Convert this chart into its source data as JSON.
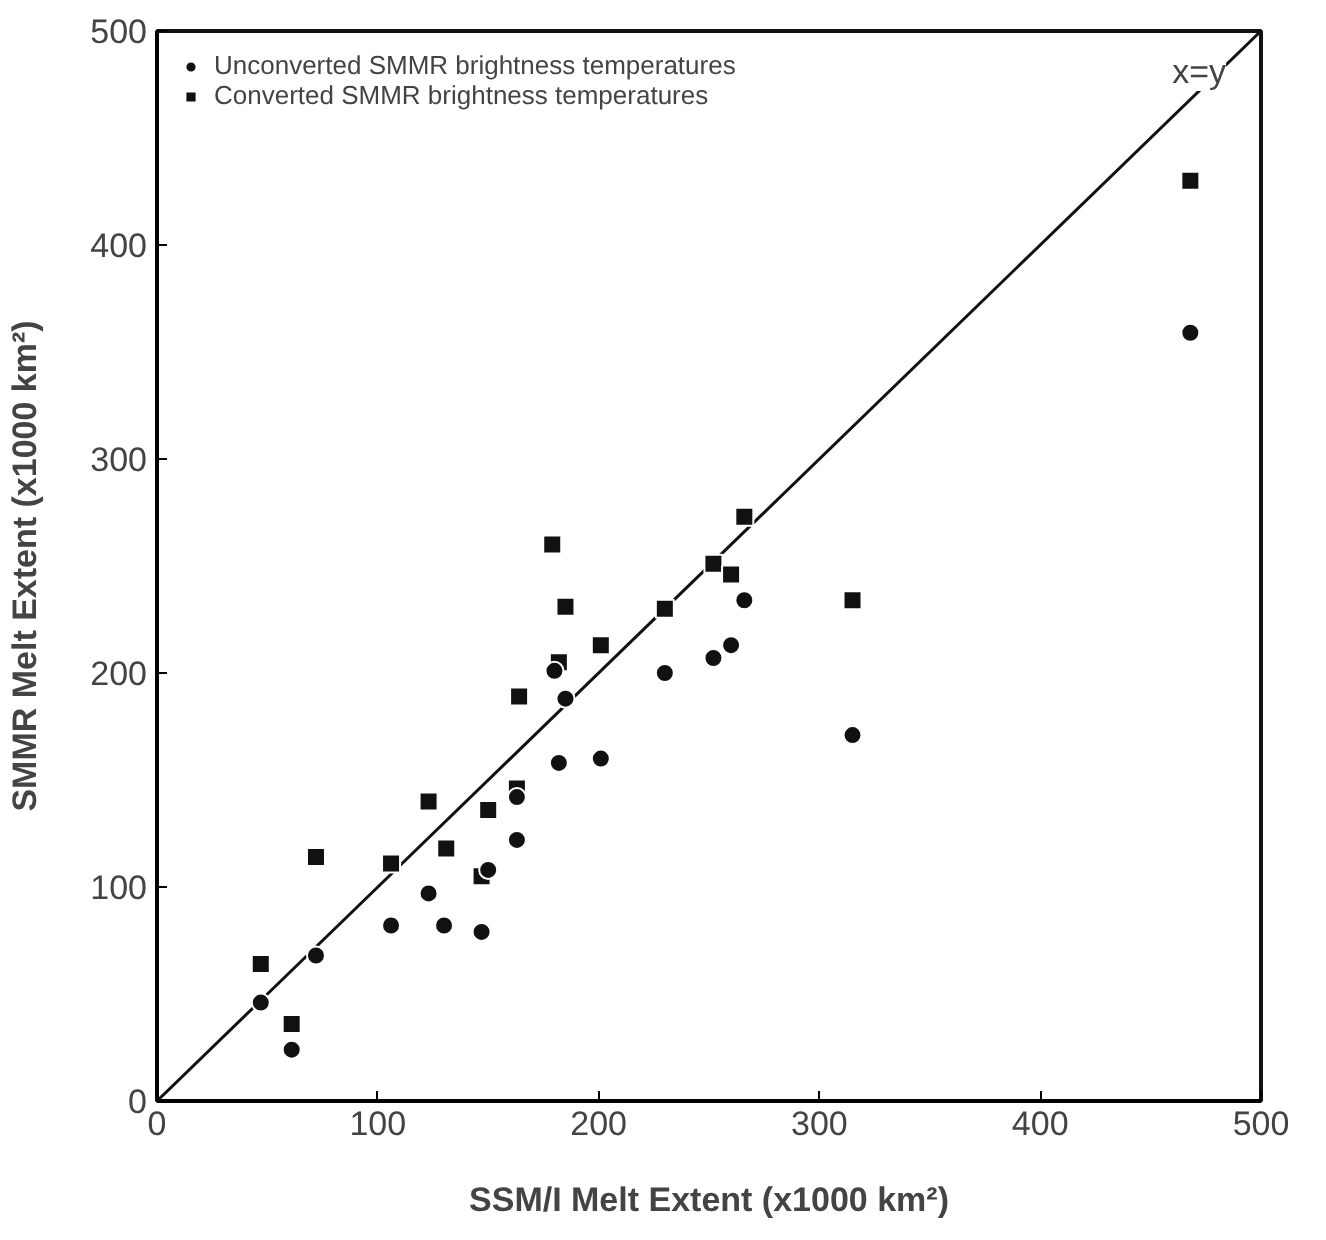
{
  "chart_data": {
    "type": "scatter",
    "xlabel": "SSM/I Melt Extent (x1000 km²)",
    "ylabel": "SMMR Melt Extent (x1000 km²)",
    "xlim": [
      0,
      500
    ],
    "ylim": [
      0,
      500
    ],
    "xticks": [
      0,
      100,
      200,
      300,
      400,
      500
    ],
    "yticks": [
      0,
      100,
      200,
      300,
      400,
      500
    ],
    "grid": false,
    "legend": "top left",
    "series": [
      {
        "name": "Unconverted SMMR brightness temperatures",
        "color": "#111111",
        "marker": "circle",
        "x": [
          47,
          61,
          72,
          106,
          123,
          130,
          147,
          150,
          163,
          163,
          180,
          185,
          182,
          201,
          230,
          252,
          260,
          266,
          315,
          468
        ],
        "values": [
          46,
          24,
          68,
          82,
          97,
          82,
          79,
          108,
          142,
          122,
          201,
          188,
          158,
          160,
          200,
          207,
          213,
          234,
          171,
          359
        ]
      },
      {
        "name": "Converted SMMR brightness temperatures",
        "color": "#111111",
        "marker": "square",
        "x": [
          47,
          61,
          72,
          106,
          123,
          131,
          150,
          147,
          163,
          164,
          179,
          185,
          182,
          201,
          230,
          252,
          260,
          266,
          315,
          468
        ],
        "values": [
          64,
          36,
          114,
          111,
          140,
          118,
          136,
          105,
          146,
          189,
          260,
          231,
          205,
          213,
          230,
          251,
          246,
          273,
          234,
          430
        ]
      },
      {
        "type": "line",
        "color": "#111111",
        "x": [
          0,
          500
        ],
        "values": [
          0,
          500
        ]
      }
    ],
    "annotations": [
      {
        "text": "x=y",
        "x": 472,
        "y": 472
      }
    ]
  }
}
